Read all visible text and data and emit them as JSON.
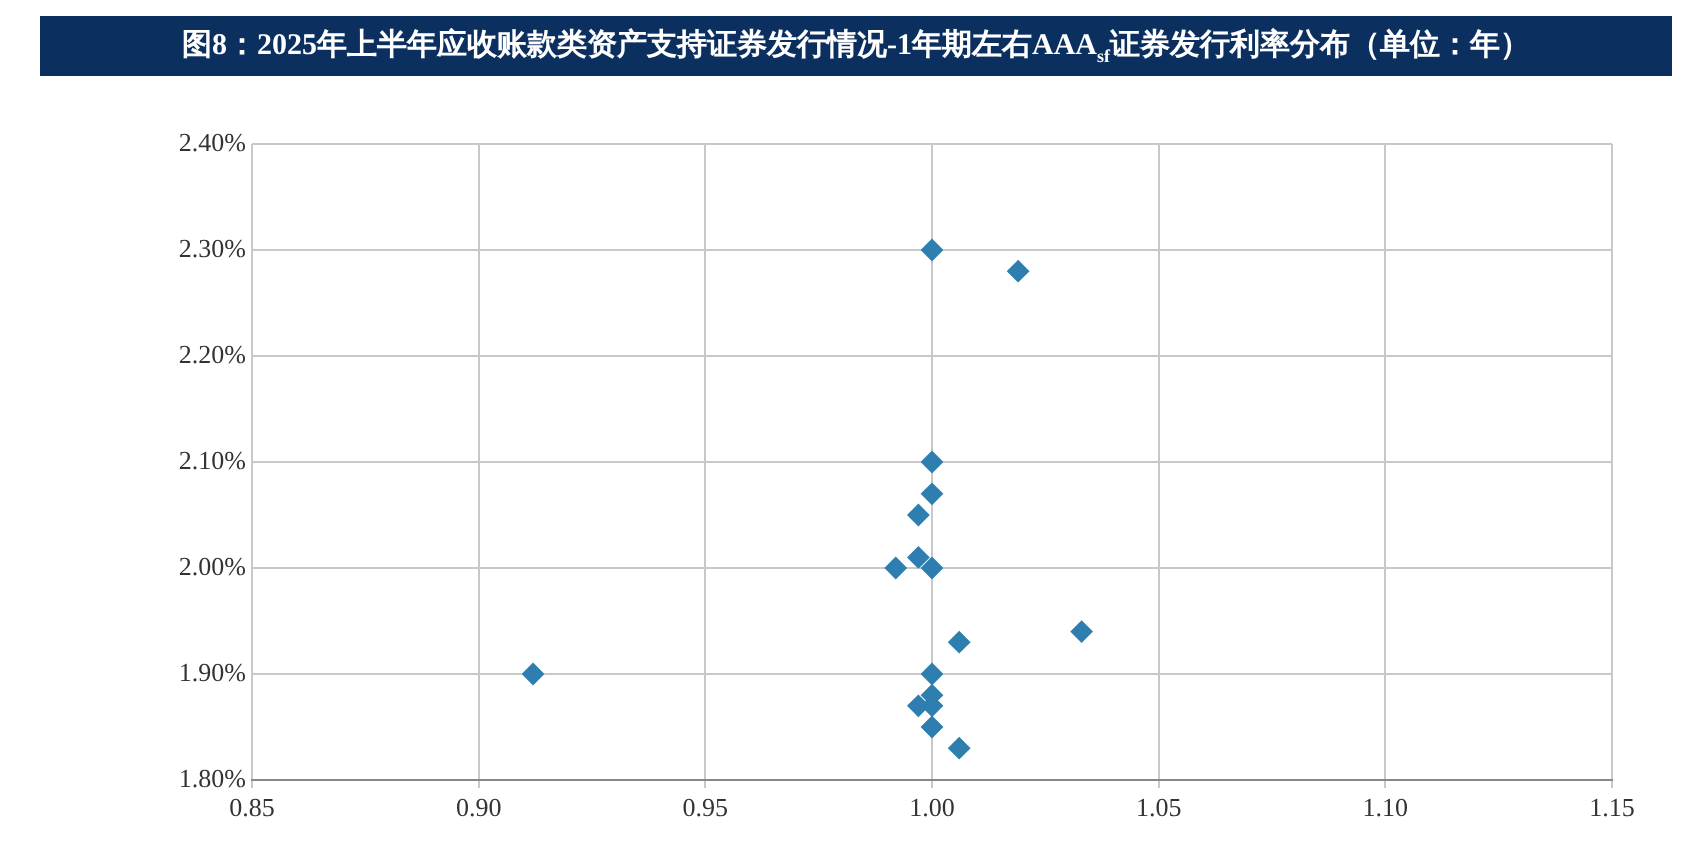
{
  "chart_data": {
    "type": "scatter",
    "title": "图8：2025年上半年应收账款类资产支持证券发行情况-1年期左右AAA$_{sf}$证券发行利率分布（单位：年）",
    "series": [
      {
        "color": "#2e7fb0",
        "x": [
          1.0,
          1.019,
          1.0,
          1.0,
          0.997,
          0.997,
          1.0,
          0.992,
          1.006,
          1.033,
          0.912,
          1.0,
          0.997,
          1.0,
          1.0,
          1.0,
          1.006
        ],
        "values": [
          2.3,
          2.28,
          2.1,
          2.07,
          2.05,
          2.01,
          2.0,
          2.0,
          1.93,
          1.94,
          1.9,
          1.9,
          1.87,
          1.88,
          1.87,
          1.85,
          1.83
        ]
      }
    ],
    "xlim": [
      0.85,
      1.15
    ],
    "xticks": [
      0.85,
      {
        "value": 0.9,
        "label": "0.90"
      },
      0.95,
      {
        "value": 1.0,
        "label": "1.00"
      },
      1.05,
      {
        "value": 1.1,
        "label": "1.10"
      },
      1.15
    ],
    "ylim": [
      1.8,
      2.4
    ],
    "yticks": [
      {
        "value": 1.8,
        "label": "1.80%"
      },
      {
        "value": 1.9,
        "label": "1.90%"
      },
      {
        "value": 2.0,
        "label": "2.00%"
      },
      {
        "value": 2.1,
        "label": "2.10%"
      },
      {
        "value": 2.2,
        "label": "2.20%"
      },
      {
        "value": 2.3,
        "label": "2.30%"
      },
      {
        "value": 2.4,
        "label": "2.40%"
      }
    ],
    "grid": true,
    "legend": false,
    "marker": "diamond"
  }
}
